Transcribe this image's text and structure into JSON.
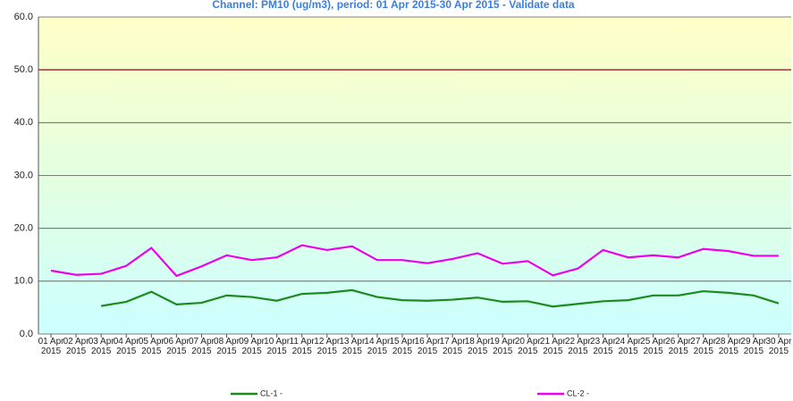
{
  "chart_data": {
    "type": "line",
    "title": "Channel: PM10 (ug/m3), period: 01 Apr 2015-30 Apr 2015 - Validate data",
    "categories": [
      "01 Apr 2015",
      "02 Apr 2015",
      "03 Apr 2015",
      "04 Apr 2015",
      "05 Apr 2015",
      "06 Apr 2015",
      "07 Apr 2015",
      "08 Apr 2015",
      "09 Apr 2015",
      "10 Apr 2015",
      "11 Apr 2015",
      "12 Apr 2015",
      "13 Apr 2015",
      "14 Apr 2015",
      "15 Apr 2015",
      "16 Apr 2015",
      "17 Apr 2015",
      "18 Apr 2015",
      "19 Apr 2015",
      "20 Apr 2015",
      "21 Apr 2015",
      "22 Apr 2015",
      "23 Apr 2015",
      "24 Apr 2015",
      "25 Apr 2015",
      "26 Apr 2015",
      "27 Apr 2015",
      "28 Apr 2015",
      "29 Apr 2015",
      "30 Apr 2015"
    ],
    "series": [
      {
        "name": "CL-1 -",
        "color": "#1e8a1e",
        "values": [
          null,
          null,
          5.3,
          6.1,
          8.0,
          5.6,
          5.9,
          7.3,
          7.0,
          6.3,
          7.6,
          7.8,
          8.3,
          7.0,
          6.4,
          6.3,
          6.5,
          6.9,
          6.1,
          6.2,
          5.2,
          5.7,
          6.2,
          6.4,
          7.3,
          7.3,
          8.1,
          7.8,
          7.3,
          5.8
        ]
      },
      {
        "name": "CL-2 -",
        "color": "#ee00ee",
        "values": [
          12.0,
          11.2,
          11.4,
          12.9,
          16.3,
          11.0,
          12.8,
          14.9,
          14.0,
          14.5,
          16.8,
          15.9,
          16.6,
          14.0,
          14.0,
          13.4,
          14.2,
          15.3,
          13.3,
          13.8,
          11.1,
          12.4,
          15.9,
          14.5,
          14.9,
          14.5,
          16.1,
          15.7,
          14.8,
          14.8
        ]
      }
    ],
    "threshold": {
      "value": 50,
      "color": "#b03030"
    },
    "ylim": [
      0,
      60
    ],
    "yticks": [
      {
        "value": 0,
        "label": "0.0"
      },
      {
        "value": 10,
        "label": "10.0"
      },
      {
        "value": 20,
        "label": "20.0"
      },
      {
        "value": 30,
        "label": "30.0"
      },
      {
        "value": 40,
        "label": "40.0"
      },
      {
        "value": 50,
        "label": "50.0"
      },
      {
        "value": 60,
        "label": "60.0"
      }
    ],
    "grid": true
  }
}
